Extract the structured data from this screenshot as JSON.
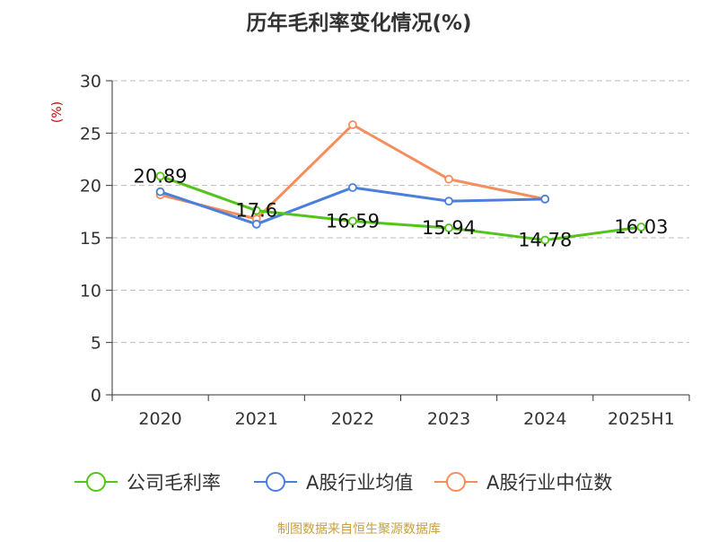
{
  "chart_data": {
    "type": "line",
    "title": "历年毛利率变化情况(%)",
    "ylabel": "(%)",
    "xlabel": "",
    "categories": [
      "2020",
      "2021",
      "2022",
      "2023",
      "2024",
      "2025H1"
    ],
    "ylim": [
      0,
      30
    ],
    "yticks": [
      0,
      5,
      10,
      15,
      20,
      25,
      30
    ],
    "grid": true,
    "legend_position": "bottom",
    "series": [
      {
        "name": "公司毛利率",
        "color": "#52c41a",
        "values": [
          20.89,
          17.6,
          16.59,
          15.94,
          14.78,
          16.03
        ],
        "labels": [
          "20.89",
          "17.6",
          "16.59",
          "15.94",
          "14.78",
          "16.03"
        ]
      },
      {
        "name": "A股行业均值",
        "color": "#4a7fdc",
        "values": [
          19.4,
          16.3,
          19.8,
          18.5,
          18.7,
          null
        ],
        "labels": null
      },
      {
        "name": "A股行业中位数",
        "color": "#f68d5c",
        "values": [
          19.1,
          16.8,
          25.8,
          20.6,
          18.7,
          null
        ],
        "labels": null
      }
    ],
    "source": "制图数据来自恒生聚源数据库"
  },
  "colors": {
    "title": "#333333",
    "axis": "#333333",
    "grid": "#bbbbbb",
    "ylabel": "#cc0000",
    "source": "#c8a03c"
  }
}
